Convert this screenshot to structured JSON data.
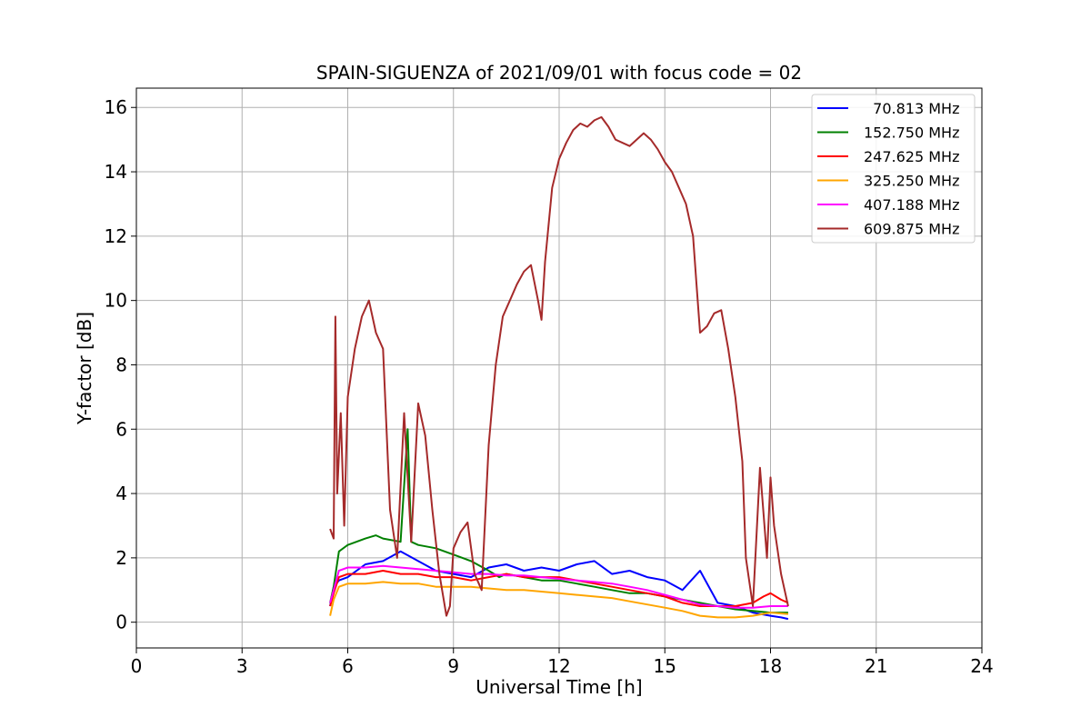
{
  "chart_data": {
    "type": "line",
    "title": "SPAIN-SIGUENZA of 2021/09/01 with focus code = 02",
    "xlabel": "Universal Time [h]",
    "ylabel": "Y-factor [dB]",
    "xlim": [
      0,
      24
    ],
    "ylim": [
      -0.8,
      16.6
    ],
    "xticks": [
      0,
      3,
      6,
      9,
      12,
      15,
      18,
      21,
      24
    ],
    "yticks": [
      0,
      2,
      4,
      6,
      8,
      10,
      12,
      14,
      16
    ],
    "grid": true,
    "legend_position": "top-right",
    "series": [
      {
        "name": "  70.813 MHz",
        "color": "#0000ff",
        "x": [
          5.5,
          5.6,
          5.75,
          6.0,
          6.5,
          7.0,
          7.5,
          8.0,
          8.5,
          9.0,
          9.5,
          10.0,
          10.5,
          11.0,
          11.5,
          12.0,
          12.5,
          13.0,
          13.5,
          14.0,
          14.5,
          15.0,
          15.5,
          16.0,
          16.5,
          17.0,
          17.5,
          18.0,
          18.3,
          18.5
        ],
        "y": [
          0.5,
          1.1,
          1.3,
          1.4,
          1.8,
          1.9,
          2.2,
          1.9,
          1.6,
          1.5,
          1.4,
          1.7,
          1.8,
          1.6,
          1.7,
          1.6,
          1.8,
          1.9,
          1.5,
          1.6,
          1.4,
          1.3,
          1.0,
          1.6,
          0.6,
          0.5,
          0.3,
          0.2,
          0.15,
          0.1
        ]
      },
      {
        "name": "152.750 MHz",
        "color": "#008000",
        "x": [
          5.5,
          5.6,
          5.75,
          6.0,
          6.5,
          6.8,
          7.0,
          7.5,
          7.7,
          7.8,
          8.0,
          8.5,
          9.0,
          9.5,
          10.0,
          10.3,
          10.5,
          11.0,
          11.5,
          12.0,
          12.5,
          13.0,
          13.5,
          14.0,
          14.5,
          15.0,
          15.5,
          16.0,
          16.5,
          17.0,
          17.5,
          18.0,
          18.5
        ],
        "y": [
          0.6,
          1.1,
          2.2,
          2.4,
          2.6,
          2.7,
          2.6,
          2.5,
          6.0,
          2.5,
          2.4,
          2.3,
          2.1,
          1.9,
          1.6,
          1.4,
          1.5,
          1.4,
          1.3,
          1.3,
          1.2,
          1.1,
          1.0,
          0.9,
          0.9,
          0.8,
          0.7,
          0.6,
          0.5,
          0.4,
          0.35,
          0.3,
          0.3
        ]
      },
      {
        "name": "247.625 MHz",
        "color": "#ff0000",
        "x": [
          5.5,
          5.6,
          5.75,
          6.0,
          6.5,
          7.0,
          7.5,
          8.0,
          8.5,
          9.0,
          9.5,
          10.0,
          10.5,
          11.0,
          11.5,
          12.0,
          12.5,
          13.0,
          13.5,
          14.0,
          14.5,
          15.0,
          15.5,
          16.0,
          16.5,
          17.0,
          17.5,
          17.8,
          18.0,
          18.3,
          18.5
        ],
        "y": [
          0.5,
          0.9,
          1.4,
          1.5,
          1.5,
          1.6,
          1.5,
          1.5,
          1.4,
          1.4,
          1.3,
          1.4,
          1.5,
          1.4,
          1.4,
          1.4,
          1.3,
          1.2,
          1.1,
          1.0,
          0.9,
          0.8,
          0.6,
          0.5,
          0.5,
          0.5,
          0.6,
          0.8,
          0.9,
          0.7,
          0.6
        ]
      },
      {
        "name": "325.250 MHz",
        "color": "#ffa500",
        "x": [
          5.5,
          5.6,
          5.75,
          6.0,
          6.5,
          7.0,
          7.5,
          8.0,
          8.5,
          9.0,
          9.5,
          10.0,
          10.5,
          11.0,
          11.5,
          12.0,
          12.5,
          13.0,
          13.5,
          14.0,
          14.5,
          15.0,
          15.5,
          16.0,
          16.5,
          17.0,
          17.5,
          18.0,
          18.5
        ],
        "y": [
          0.2,
          0.7,
          1.1,
          1.2,
          1.2,
          1.25,
          1.2,
          1.2,
          1.1,
          1.1,
          1.1,
          1.05,
          1.0,
          1.0,
          0.95,
          0.9,
          0.85,
          0.8,
          0.75,
          0.65,
          0.55,
          0.45,
          0.35,
          0.2,
          0.15,
          0.15,
          0.2,
          0.3,
          0.25
        ]
      },
      {
        "name": "407.188 MHz",
        "color": "#ff00ff",
        "x": [
          5.5,
          5.6,
          5.75,
          6.0,
          6.5,
          7.0,
          7.5,
          8.0,
          8.5,
          9.0,
          9.5,
          10.0,
          10.5,
          11.0,
          11.5,
          12.0,
          12.5,
          13.0,
          13.5,
          14.0,
          14.5,
          15.0,
          15.5,
          16.0,
          16.5,
          17.0,
          17.5,
          18.0,
          18.5
        ],
        "y": [
          0.6,
          1.0,
          1.6,
          1.7,
          1.7,
          1.75,
          1.7,
          1.65,
          1.6,
          1.55,
          1.5,
          1.5,
          1.45,
          1.45,
          1.4,
          1.35,
          1.3,
          1.25,
          1.2,
          1.1,
          1.0,
          0.85,
          0.7,
          0.55,
          0.5,
          0.45,
          0.45,
          0.5,
          0.5
        ]
      },
      {
        "name": "609.875 MHz",
        "color": "#a52a2a",
        "x": [
          5.5,
          5.6,
          5.65,
          5.7,
          5.8,
          5.9,
          6.0,
          6.2,
          6.4,
          6.6,
          6.8,
          7.0,
          7.2,
          7.4,
          7.6,
          7.8,
          8.0,
          8.2,
          8.4,
          8.6,
          8.8,
          8.9,
          9.0,
          9.2,
          9.4,
          9.6,
          9.8,
          10.0,
          10.2,
          10.4,
          10.6,
          10.8,
          11.0,
          11.2,
          11.4,
          11.5,
          11.6,
          11.8,
          12.0,
          12.2,
          12.4,
          12.6,
          12.8,
          13.0,
          13.2,
          13.4,
          13.6,
          13.8,
          14.0,
          14.2,
          14.4,
          14.6,
          14.8,
          15.0,
          15.2,
          15.4,
          15.6,
          15.8,
          15.9,
          16.0,
          16.2,
          16.4,
          16.6,
          16.8,
          17.0,
          17.2,
          17.3,
          17.5,
          17.7,
          17.9,
          18.0,
          18.1,
          18.3,
          18.5
        ],
        "y": [
          2.9,
          2.6,
          9.5,
          4.0,
          6.5,
          3.0,
          7.0,
          8.5,
          9.5,
          10.0,
          9.0,
          8.5,
          3.5,
          2.0,
          6.5,
          2.5,
          6.8,
          5.8,
          3.5,
          1.5,
          0.2,
          0.5,
          2.3,
          2.8,
          3.1,
          1.5,
          1.0,
          5.5,
          8.0,
          9.5,
          10.0,
          10.5,
          10.9,
          11.1,
          10.0,
          9.4,
          11.2,
          13.5,
          14.4,
          14.9,
          15.3,
          15.5,
          15.4,
          15.6,
          15.7,
          15.4,
          15.0,
          14.9,
          14.8,
          15.0,
          15.2,
          15.0,
          14.7,
          14.3,
          14.0,
          13.5,
          13.0,
          12.0,
          10.5,
          9.0,
          9.2,
          9.6,
          9.7,
          8.5,
          7.0,
          5.0,
          2.0,
          0.5,
          4.8,
          2.0,
          4.5,
          3.0,
          1.5,
          0.5
        ]
      }
    ]
  }
}
